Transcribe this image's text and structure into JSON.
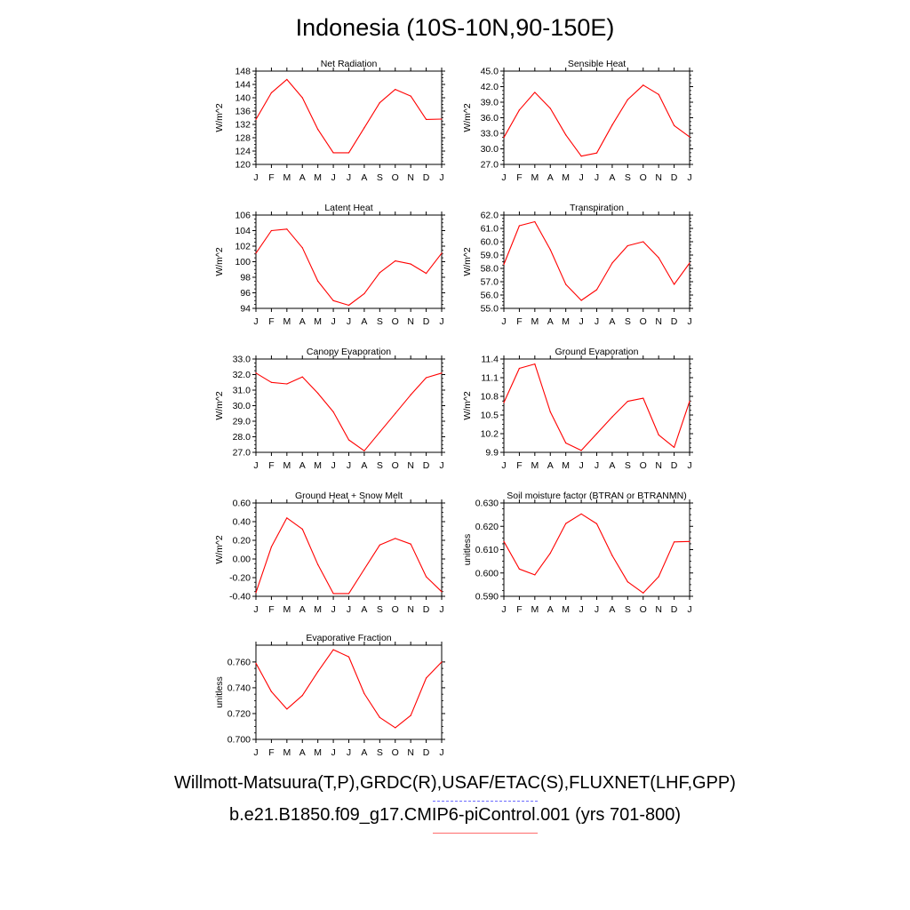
{
  "page_title": "Indonesia (10S-10N,90-150E)",
  "legend": {
    "observations": "Willmott-Matsuura(T,P),GRDC(R),USAF/ETAC(S),FLUXNET(LHF,GPP)",
    "model": "b.e21.B1850.f09_g17.CMIP6-piControl.001 (yrs 701-800)",
    "observations_color": "#6b6bff",
    "model_color": "#ff0000"
  },
  "chart_data": [
    {
      "type": "line",
      "title": "Net Radiation",
      "ylabel": "W/m^2",
      "x": [
        "J",
        "F",
        "M",
        "A",
        "M",
        "J",
        "J",
        "A",
        "S",
        "O",
        "N",
        "D",
        "J"
      ],
      "yticks": [
        "120",
        "124",
        "128",
        "132",
        "136",
        "140",
        "144",
        "148"
      ],
      "ylim": [
        120,
        148
      ],
      "series": [
        {
          "values": [
            133.5,
            141.5,
            145.5,
            140,
            130.5,
            123.5,
            123.5,
            131,
            138.5,
            142.5,
            140.5,
            133.5,
            133.6
          ],
          "color": "#ff0000"
        }
      ]
    },
    {
      "type": "line",
      "title": "Sensible Heat",
      "ylabel": "W/m^2",
      "x": [
        "J",
        "F",
        "M",
        "A",
        "M",
        "J",
        "J",
        "A",
        "S",
        "O",
        "N",
        "D",
        "J"
      ],
      "yticks": [
        "27.0",
        "30.0",
        "33.0",
        "36.0",
        "39.0",
        "42.0",
        "45.0"
      ],
      "ylim": [
        27,
        45
      ],
      "series": [
        {
          "values": [
            32.2,
            37.5,
            40.9,
            37.8,
            32.7,
            28.6,
            29.2,
            34.6,
            39.5,
            42.3,
            40.5,
            34.5,
            32.3
          ],
          "color": "#ff0000"
        }
      ]
    },
    {
      "type": "line",
      "title": "Latent Heat",
      "ylabel": "W/m^2",
      "x": [
        "J",
        "F",
        "M",
        "A",
        "M",
        "J",
        "J",
        "A",
        "S",
        "O",
        "N",
        "D",
        "J"
      ],
      "yticks": [
        "94",
        "96",
        "98",
        "100",
        "102",
        "104",
        "106"
      ],
      "ylim": [
        94,
        106
      ],
      "series": [
        {
          "values": [
            101.1,
            104,
            104.2,
            101.8,
            97.5,
            95,
            94.4,
            95.9,
            98.6,
            100.1,
            99.7,
            98.5,
            101.1
          ],
          "color": "#ff0000"
        }
      ]
    },
    {
      "type": "line",
      "title": "Transpiration",
      "ylabel": "W/m^2",
      "x": [
        "J",
        "F",
        "M",
        "A",
        "M",
        "J",
        "J",
        "A",
        "S",
        "O",
        "N",
        "D",
        "J"
      ],
      "yticks": [
        "55.0",
        "56.0",
        "57.0",
        "58.0",
        "59.0",
        "60.0",
        "61.0",
        "62.0"
      ],
      "ylim": [
        55,
        62
      ],
      "series": [
        {
          "values": [
            58.3,
            61.2,
            61.5,
            59.4,
            56.8,
            55.6,
            56.4,
            58.4,
            59.7,
            60,
            58.8,
            56.8,
            58.4
          ],
          "color": "#ff0000"
        }
      ]
    },
    {
      "type": "line",
      "title": "Canopy Evaporation",
      "ylabel": "W/m^2",
      "x": [
        "J",
        "F",
        "M",
        "A",
        "M",
        "J",
        "J",
        "A",
        "S",
        "O",
        "N",
        "D",
        "J"
      ],
      "yticks": [
        "27.0",
        "28.0",
        "29.0",
        "30.0",
        "31.0",
        "32.0",
        "33.0"
      ],
      "ylim": [
        27,
        33
      ],
      "series": [
        {
          "values": [
            32.1,
            31.5,
            31.4,
            31.85,
            30.8,
            29.6,
            27.8,
            27.1,
            28.3,
            29.5,
            30.7,
            31.8,
            32.1
          ],
          "color": "#ff0000"
        }
      ]
    },
    {
      "type": "line",
      "title": "Ground Evaporation",
      "ylabel": "W/m^2",
      "x": [
        "J",
        "F",
        "M",
        "A",
        "M",
        "J",
        "J",
        "A",
        "S",
        "O",
        "N",
        "D",
        "J"
      ],
      "yticks": [
        "9.9",
        "10.2",
        "10.5",
        "10.8",
        "11.1",
        "11.4"
      ],
      "ylim": [
        9.9,
        11.4
      ],
      "series": [
        {
          "values": [
            10.7,
            11.25,
            11.32,
            10.55,
            10.05,
            9.93,
            10.2,
            10.47,
            10.72,
            10.77,
            10.18,
            9.98,
            10.72
          ],
          "color": "#ff0000"
        }
      ]
    },
    {
      "type": "line",
      "title": "Ground Heat + Snow Melt",
      "ylabel": "W/m^2",
      "x": [
        "J",
        "F",
        "M",
        "A",
        "M",
        "J",
        "J",
        "A",
        "S",
        "O",
        "N",
        "D",
        "J"
      ],
      "yticks": [
        "-0.40",
        "-0.20",
        "0.00",
        "0.20",
        "0.40",
        "0.60"
      ],
      "ylim": [
        -0.4,
        0.6
      ],
      "series": [
        {
          "values": [
            -0.36,
            0.13,
            0.44,
            0.32,
            -0.06,
            -0.37,
            -0.37,
            -0.11,
            0.15,
            0.22,
            0.16,
            -0.19,
            -0.35
          ],
          "color": "#ff0000"
        }
      ]
    },
    {
      "type": "line",
      "title": "Soil moisture factor (BTRAN or BTRANMN)",
      "ylabel": "unitless",
      "x": [
        "J",
        "F",
        "M",
        "A",
        "M",
        "J",
        "J",
        "A",
        "S",
        "O",
        "N",
        "D",
        "J"
      ],
      "yticks": [
        "0.590",
        "0.600",
        "0.610",
        "0.620",
        "0.630"
      ],
      "ylim": [
        0.59,
        0.63
      ],
      "series": [
        {
          "values": [
            0.6135,
            0.6017,
            0.5992,
            0.6085,
            0.6212,
            0.6253,
            0.6211,
            0.6075,
            0.5962,
            0.5914,
            0.5984,
            0.6133,
            0.6135
          ],
          "color": "#ff0000"
        }
      ]
    },
    {
      "type": "line",
      "title": "Evaporative Fraction",
      "ylabel": "unitless",
      "x": [
        "J",
        "F",
        "M",
        "A",
        "M",
        "J",
        "J",
        "A",
        "S",
        "O",
        "N",
        "D",
        "J"
      ],
      "yticks": [
        "0.700",
        "0.720",
        "0.740",
        "0.760"
      ],
      "ylim": [
        0.7,
        0.773
      ],
      "series": [
        {
          "values": [
            0.759,
            0.737,
            0.7235,
            0.734,
            0.7525,
            0.7695,
            0.764,
            0.7355,
            0.717,
            0.709,
            0.7185,
            0.7475,
            0.76
          ],
          "color": "#ff0000"
        }
      ]
    }
  ]
}
